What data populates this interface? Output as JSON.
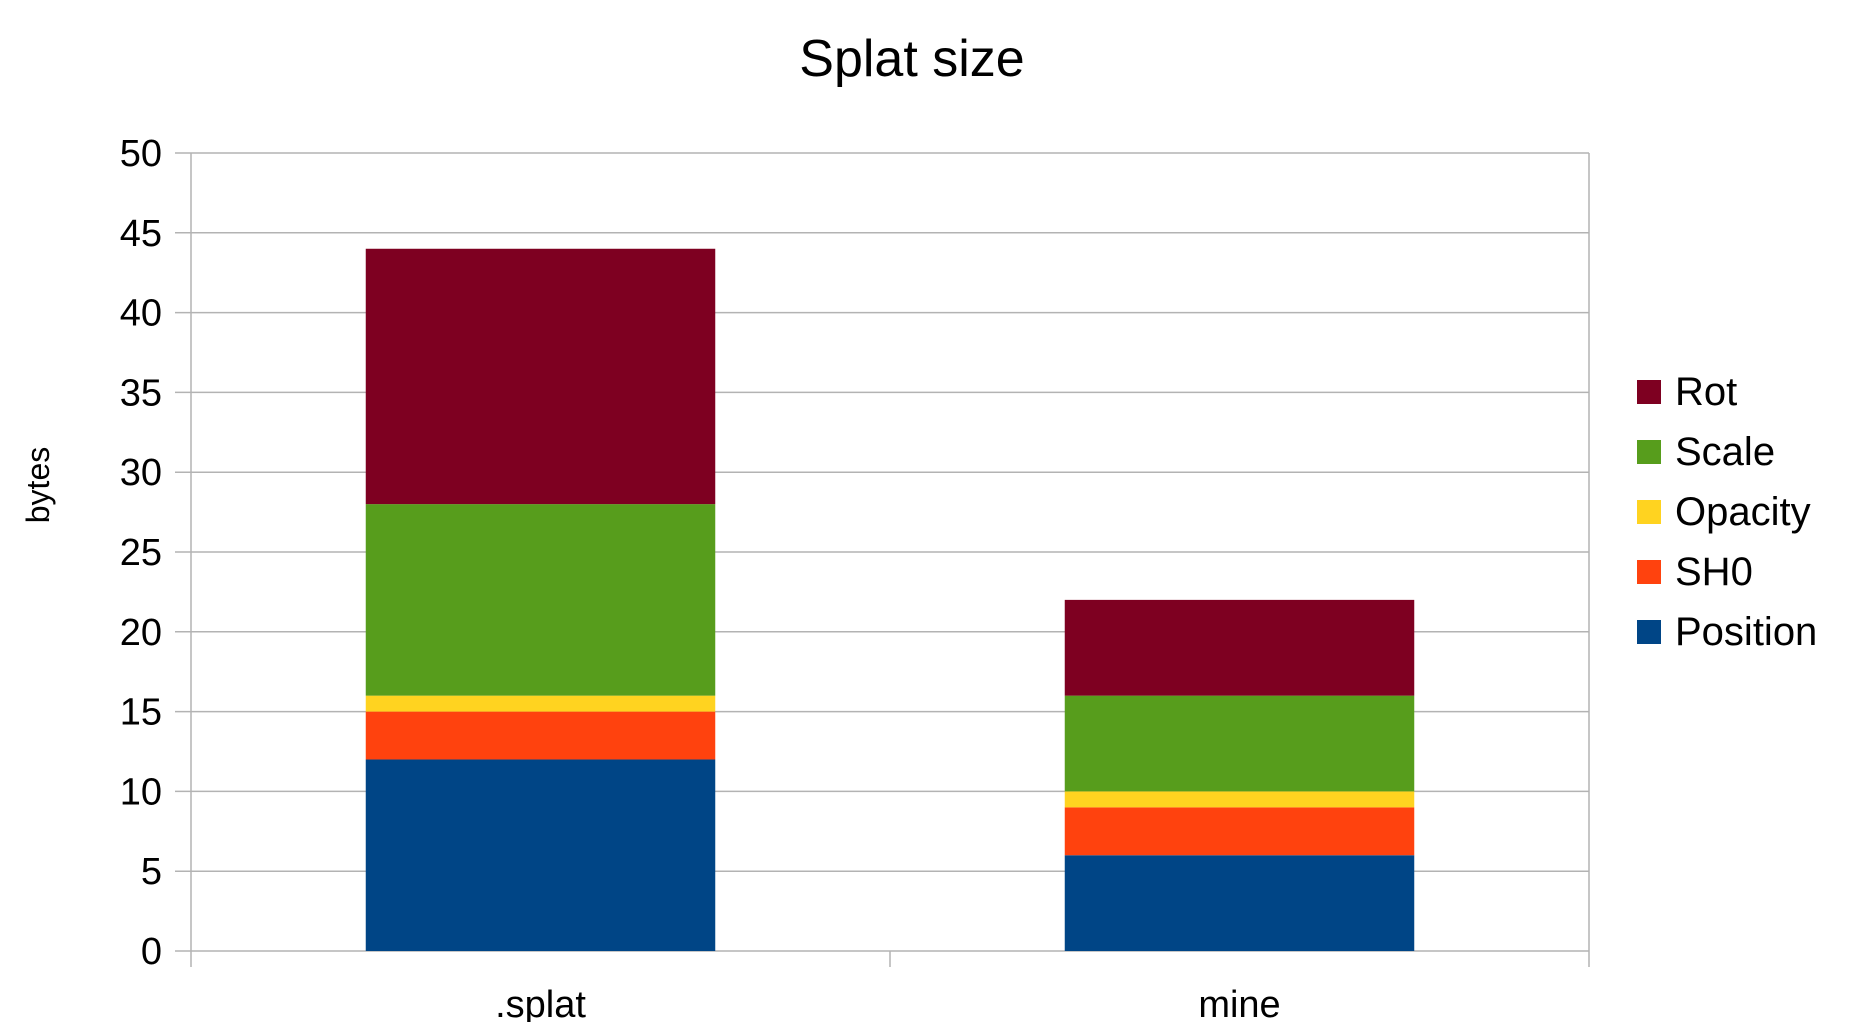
{
  "chart_data": {
    "type": "bar",
    "stacked": true,
    "title": "Splat size",
    "xlabel": "",
    "ylabel": "bytes",
    "ylim": [
      0,
      50
    ],
    "yticks": [
      0,
      5,
      10,
      15,
      20,
      25,
      30,
      35,
      40,
      45,
      50
    ],
    "categories": [
      ".splat",
      "mine"
    ],
    "grid": true,
    "legend_position": "right",
    "series": [
      {
        "name": "Position",
        "color": "#004586",
        "values": [
          12,
          6
        ]
      },
      {
        "name": "SH0",
        "color": "#ff420e",
        "values": [
          3,
          3
        ]
      },
      {
        "name": "Opacity",
        "color": "#ffd320",
        "values": [
          1,
          1
        ]
      },
      {
        "name": "Scale",
        "color": "#579d1c",
        "values": [
          12,
          6
        ]
      },
      {
        "name": "Rot",
        "color": "#7e0021",
        "values": [
          16,
          6
        ]
      }
    ]
  }
}
